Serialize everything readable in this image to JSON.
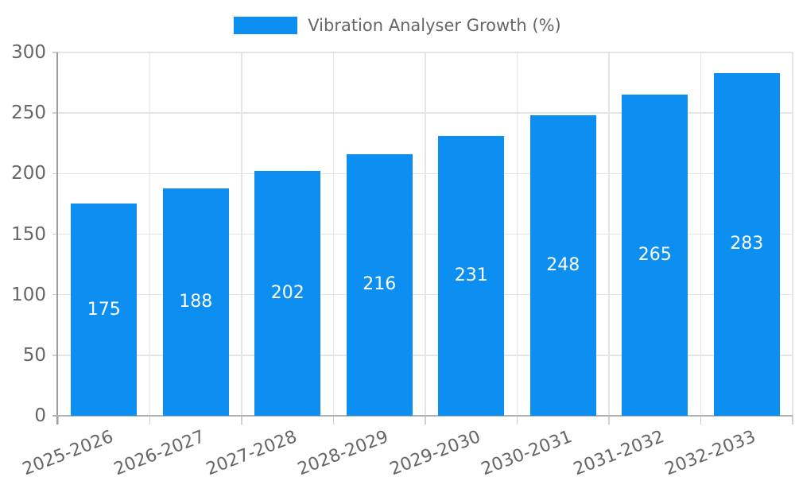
{
  "chart_data": {
    "type": "bar",
    "title": "",
    "legend": {
      "position": "top",
      "label": "Vibration Analyser Growth (%)"
    },
    "categories": [
      "2025-2026",
      "2026-2027",
      "2027-2028",
      "2028-2029",
      "2029-2030",
      "2030-2031",
      "2031-2032",
      "2032-2033"
    ],
    "values": [
      175,
      188,
      202,
      216,
      231,
      248,
      265,
      283
    ],
    "xlabel": "",
    "ylabel": "",
    "ylim": [
      0,
      300
    ],
    "yticks": [
      0,
      50,
      100,
      150,
      200,
      250,
      300
    ],
    "grid": true,
    "x_label_rotation_deg": -21,
    "colors": {
      "bar": "#0d8ff2",
      "value_label": "#ffffff",
      "axis_text": "#666666",
      "gridline": "#e5e5e5",
      "tick": "#cfcfcf",
      "y_axis_line": "#9e9e9e",
      "x_axis_line": "#b3b3b3",
      "background": "#ffffff"
    }
  }
}
